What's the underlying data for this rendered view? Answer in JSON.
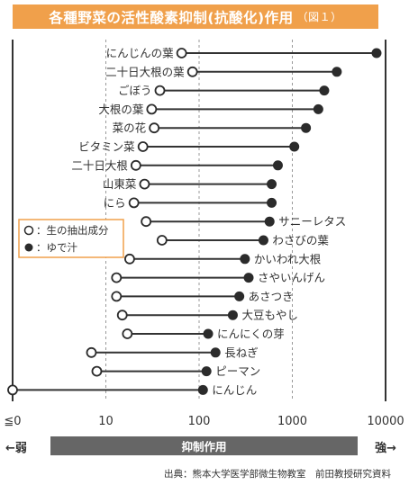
{
  "title": {
    "main": "各種野菜の活性酸素抑制(抗酸化)作用",
    "figure": "（図１）"
  },
  "arrow": {
    "left": "←弱",
    "right": "強→",
    "bar": "抑制作用"
  },
  "source": "出典：熊本大学医学部微生物教室　前田教授研究資料",
  "chart_data": {
    "type": "dumbbell",
    "title": "各種野菜の活性酸素抑制(抗酸化)作用",
    "x_scale": "log",
    "xlim": [
      1,
      10000
    ],
    "x_ticks": [
      {
        "value": 1,
        "label": "≦0"
      },
      {
        "value": 10,
        "label": "10"
      },
      {
        "value": 100,
        "label": "100"
      },
      {
        "value": 1000,
        "label": "1000"
      },
      {
        "value": 10000,
        "label": "10000"
      }
    ],
    "grid": "vertical dashed at 10, 100, 1000",
    "legend": {
      "placement": "left-middle",
      "items": [
        {
          "marker": "open-circle",
          "label": "○：生の抽出成分"
        },
        {
          "marker": "filled-circle",
          "label": "●：ゆで汁"
        }
      ]
    },
    "series_names": [
      "生の抽出成分",
      "ゆで汁"
    ],
    "items": [
      {
        "label": "にんじんの葉",
        "label_side": "left",
        "raw": 65,
        "boiled": 8000
      },
      {
        "label": "二十日大根の葉",
        "label_side": "left",
        "raw": 85,
        "boiled": 3000
      },
      {
        "label": "ごぼう",
        "label_side": "left",
        "raw": 38,
        "boiled": 2200
      },
      {
        "label": "大根の葉",
        "label_side": "left",
        "raw": 31,
        "boiled": 1900
      },
      {
        "label": "菜の花",
        "label_side": "left",
        "raw": 33,
        "boiled": 1400
      },
      {
        "label": "ビタミン菜",
        "label_side": "left",
        "raw": 25,
        "boiled": 1050
      },
      {
        "label": "二十日大根",
        "label_side": "left",
        "raw": 21,
        "boiled": 700
      },
      {
        "label": "山東菜",
        "label_side": "left",
        "raw": 26,
        "boiled": 600
      },
      {
        "label": "にら",
        "label_side": "left",
        "raw": 20,
        "boiled": 600
      },
      {
        "label": "サニーレタス",
        "label_side": "right",
        "raw": 27,
        "boiled": 570
      },
      {
        "label": "わさびの葉",
        "label_side": "right",
        "raw": 40,
        "boiled": 490
      },
      {
        "label": "かいわれ大根",
        "label_side": "right",
        "raw": 18,
        "boiled": 310
      },
      {
        "label": "さやいんげん",
        "label_side": "right",
        "raw": 13,
        "boiled": 340
      },
      {
        "label": "あさつき",
        "label_side": "right",
        "raw": 13,
        "boiled": 270
      },
      {
        "label": "大豆もやし",
        "label_side": "right",
        "raw": 15,
        "boiled": 230
      },
      {
        "label": "にんにくの芽",
        "label_side": "right",
        "raw": 17,
        "boiled": 125
      },
      {
        "label": "長ねぎ",
        "label_side": "right",
        "raw": 7,
        "boiled": 150
      },
      {
        "label": "ピーマン",
        "label_side": "right",
        "raw": 8,
        "boiled": 120
      },
      {
        "label": "にんじん",
        "label_side": "right",
        "raw": 1,
        "boiled": 110
      }
    ]
  }
}
